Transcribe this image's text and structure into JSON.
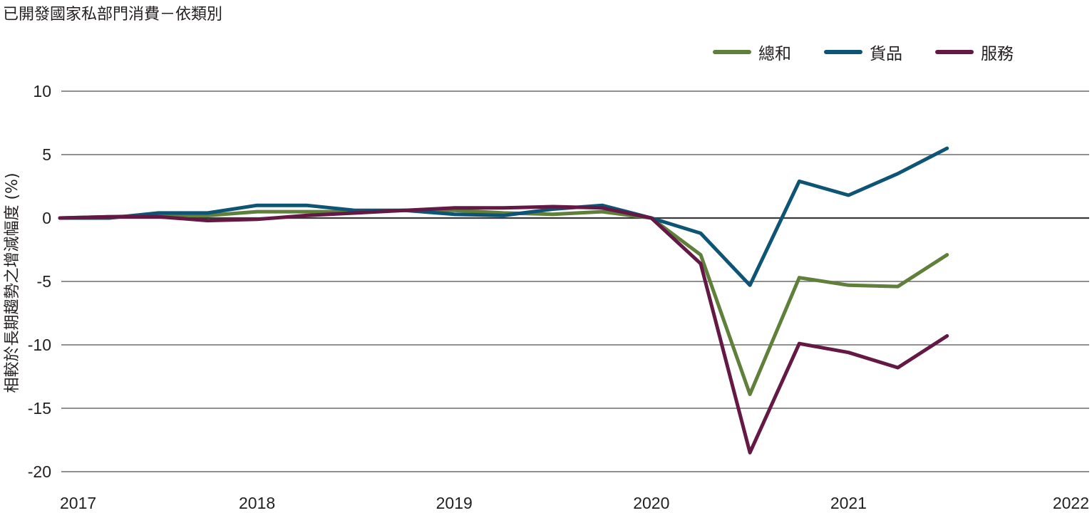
{
  "chart_data": {
    "type": "line",
    "title": "已開發國家私部門消費－依類別",
    "ylabel": "相較於長期趨勢之增減幅度 (%)",
    "xlabel": "",
    "ylim": [
      -20,
      10
    ],
    "yticks": [
      10,
      5,
      0,
      -5,
      -10,
      -15,
      -20
    ],
    "xticks": [
      "2017",
      "2018",
      "2019",
      "2020",
      "2021",
      "2022"
    ],
    "grid": true,
    "legend_position": "top-right",
    "x": [
      "2017-Q1",
      "2017-Q2",
      "2017-Q3",
      "2017-Q4",
      "2018-Q1",
      "2018-Q2",
      "2018-Q3",
      "2018-Q4",
      "2019-Q1",
      "2019-Q2",
      "2019-Q3",
      "2019-Q4",
      "2020-Q1",
      "2020-Q2",
      "2020-Q3",
      "2020-Q4",
      "2021-Q1",
      "2021-Q2",
      "2021-Q3"
    ],
    "series": [
      {
        "name": "總和",
        "color": "#5f7f3a",
        "values": [
          0,
          0.1,
          0.2,
          0.2,
          0.5,
          0.5,
          0.5,
          0.6,
          0.6,
          0.4,
          0.3,
          0.5,
          0,
          -2.9,
          -13.9,
          -4.7,
          -5.3,
          -5.4,
          -2.9
        ]
      },
      {
        "name": "貨品",
        "color": "#0e5475",
        "values": [
          0,
          0,
          0.4,
          0.4,
          1.0,
          1.0,
          0.6,
          0.6,
          0.3,
          0.2,
          0.7,
          1.0,
          0,
          -1.2,
          -5.3,
          2.9,
          1.8,
          3.5,
          5.5
        ]
      },
      {
        "name": "服務",
        "color": "#641945",
        "values": [
          0,
          0.1,
          0.1,
          -0.2,
          -0.1,
          0.2,
          0.4,
          0.6,
          0.8,
          0.8,
          0.9,
          0.8,
          0,
          -3.6,
          -18.5,
          -9.9,
          -10.6,
          -11.8,
          -9.3
        ]
      }
    ]
  }
}
